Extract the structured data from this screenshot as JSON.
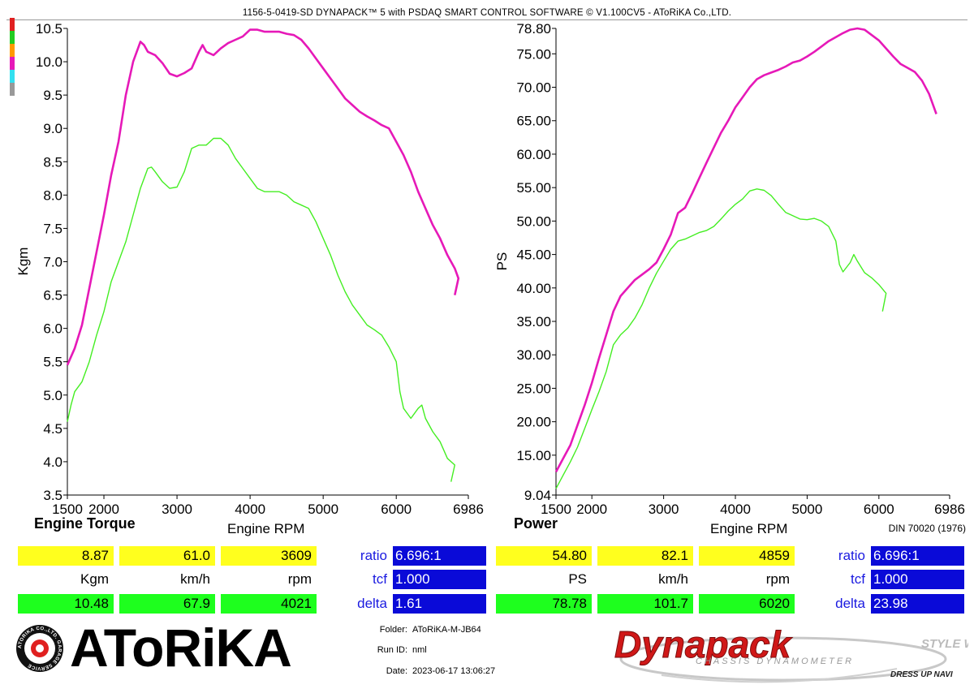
{
  "header": {
    "title": "1156-5-0419-SD DYNAPACK™ 5 with PSDAQ SMART CONTROL SOFTWARE © V1.100CV5 - AToRiKA Co.,LTD."
  },
  "colors": {
    "series_max": "#e619b8",
    "series_min": "#44ee22",
    "yellow": "#ffff1e",
    "green": "#1eff1e",
    "blue": "#0a0ad8"
  },
  "legend_swatch_colors": [
    "#e02020",
    "#22cc22",
    "#ff9900",
    "#e619b8",
    "#33e0f0",
    "#999999"
  ],
  "chart_data": [
    {
      "type": "line",
      "title": "Engine Torque",
      "xlabel": "Engine RPM",
      "ylabel": "Kgm",
      "xlim": [
        1500,
        6986
      ],
      "ylim": [
        3.5,
        10.5
      ],
      "x_ticks": [
        "1500",
        "2000",
        "3000",
        "4000",
        "5000",
        "6000",
        "6986"
      ],
      "y_ticks": [
        "10.5",
        "10.0",
        "9.5",
        "9.0",
        "8.5",
        "8.0",
        "7.5",
        "7.0",
        "6.5",
        "6.0",
        "5.5",
        "5.0",
        "4.5",
        "4.0",
        "3.5"
      ],
      "grid": false,
      "series": [
        {
          "color": "#e619b8",
          "points": [
            [
              1500,
              5.45
            ],
            [
              1600,
              5.7
            ],
            [
              1700,
              6.05
            ],
            [
              1800,
              6.6
            ],
            [
              1900,
              7.15
            ],
            [
              2000,
              7.7
            ],
            [
              2100,
              8.3
            ],
            [
              2200,
              8.8
            ],
            [
              2300,
              9.5
            ],
            [
              2400,
              10.0
            ],
            [
              2500,
              10.3
            ],
            [
              2550,
              10.25
            ],
            [
              2600,
              10.15
            ],
            [
              2700,
              10.1
            ],
            [
              2800,
              9.98
            ],
            [
              2900,
              9.82
            ],
            [
              3000,
              9.78
            ],
            [
              3100,
              9.83
            ],
            [
              3200,
              9.9
            ],
            [
              3300,
              10.15
            ],
            [
              3350,
              10.25
            ],
            [
              3400,
              10.15
            ],
            [
              3500,
              10.1
            ],
            [
              3600,
              10.2
            ],
            [
              3700,
              10.28
            ],
            [
              3800,
              10.33
            ],
            [
              3900,
              10.38
            ],
            [
              4000,
              10.48
            ],
            [
              4100,
              10.48
            ],
            [
              4200,
              10.45
            ],
            [
              4300,
              10.45
            ],
            [
              4400,
              10.45
            ],
            [
              4500,
              10.42
            ],
            [
              4600,
              10.4
            ],
            [
              4700,
              10.33
            ],
            [
              4800,
              10.2
            ],
            [
              4900,
              10.05
            ],
            [
              5000,
              9.9
            ],
            [
              5100,
              9.75
            ],
            [
              5200,
              9.6
            ],
            [
              5300,
              9.45
            ],
            [
              5400,
              9.35
            ],
            [
              5500,
              9.25
            ],
            [
              5600,
              9.18
            ],
            [
              5700,
              9.12
            ],
            [
              5800,
              9.05
            ],
            [
              5900,
              9.0
            ],
            [
              6000,
              8.8
            ],
            [
              6100,
              8.6
            ],
            [
              6200,
              8.35
            ],
            [
              6300,
              8.05
            ],
            [
              6400,
              7.8
            ],
            [
              6500,
              7.55
            ],
            [
              6600,
              7.35
            ],
            [
              6700,
              7.1
            ],
            [
              6800,
              6.9
            ],
            [
              6850,
              6.75
            ],
            [
              6800,
              6.5
            ]
          ]
        },
        {
          "color": "#44ee22",
          "points": [
            [
              1500,
              4.6
            ],
            [
              1550,
              4.85
            ],
            [
              1600,
              5.05
            ],
            [
              1700,
              5.2
            ],
            [
              1800,
              5.5
            ],
            [
              1900,
              5.9
            ],
            [
              2000,
              6.25
            ],
            [
              2100,
              6.7
            ],
            [
              2200,
              7.0
            ],
            [
              2300,
              7.3
            ],
            [
              2400,
              7.7
            ],
            [
              2500,
              8.1
            ],
            [
              2600,
              8.4
            ],
            [
              2650,
              8.42
            ],
            [
              2700,
              8.35
            ],
            [
              2800,
              8.2
            ],
            [
              2900,
              8.1
            ],
            [
              3000,
              8.12
            ],
            [
              3100,
              8.35
            ],
            [
              3200,
              8.7
            ],
            [
              3300,
              8.75
            ],
            [
              3400,
              8.75
            ],
            [
              3500,
              8.85
            ],
            [
              3600,
              8.85
            ],
            [
              3700,
              8.75
            ],
            [
              3800,
              8.55
            ],
            [
              3900,
              8.4
            ],
            [
              4000,
              8.25
            ],
            [
              4100,
              8.1
            ],
            [
              4200,
              8.05
            ],
            [
              4300,
              8.05
            ],
            [
              4400,
              8.05
            ],
            [
              4500,
              8.0
            ],
            [
              4600,
              7.9
            ],
            [
              4700,
              7.85
            ],
            [
              4800,
              7.8
            ],
            [
              4900,
              7.6
            ],
            [
              5000,
              7.35
            ],
            [
              5100,
              7.1
            ],
            [
              5200,
              6.8
            ],
            [
              5300,
              6.55
            ],
            [
              5400,
              6.35
            ],
            [
              5500,
              6.2
            ],
            [
              5600,
              6.05
            ],
            [
              5700,
              5.98
            ],
            [
              5800,
              5.9
            ],
            [
              5900,
              5.72
            ],
            [
              6000,
              5.5
            ],
            [
              6050,
              5.05
            ],
            [
              6100,
              4.8
            ],
            [
              6200,
              4.65
            ],
            [
              6300,
              4.8
            ],
            [
              6350,
              4.85
            ],
            [
              6400,
              4.65
            ],
            [
              6500,
              4.45
            ],
            [
              6600,
              4.3
            ],
            [
              6700,
              4.05
            ],
            [
              6800,
              3.95
            ],
            [
              6750,
              3.7
            ]
          ]
        }
      ]
    },
    {
      "type": "line",
      "title": "Power",
      "xlabel": "Engine RPM",
      "ylabel": "PS",
      "subtitle": "DIN 70020 (1976)",
      "xlim": [
        1500,
        6986
      ],
      "ylim": [
        9.04,
        78.8
      ],
      "x_ticks": [
        "1500",
        "2000",
        "3000",
        "4000",
        "5000",
        "6000",
        "6986"
      ],
      "y_ticks": [
        "78.80",
        "75.00",
        "70.00",
        "65.00",
        "60.00",
        "55.00",
        "50.00",
        "45.00",
        "40.00",
        "35.00",
        "30.00",
        "25.00",
        "20.00",
        "15.00",
        "9.04"
      ],
      "grid": false,
      "series": [
        {
          "color": "#e619b8",
          "points": [
            [
              1500,
              12.5
            ],
            [
              1600,
              14.5
            ],
            [
              1700,
              16.5
            ],
            [
              1800,
              19.5
            ],
            [
              1900,
              22.5
            ],
            [
              2000,
              25.8
            ],
            [
              2100,
              29.5
            ],
            [
              2200,
              33.0
            ],
            [
              2300,
              36.5
            ],
            [
              2400,
              38.8
            ],
            [
              2500,
              40.0
            ],
            [
              2600,
              41.2
            ],
            [
              2700,
              42.0
            ],
            [
              2800,
              42.8
            ],
            [
              2900,
              43.8
            ],
            [
              3000,
              45.8
            ],
            [
              3100,
              48.0
            ],
            [
              3200,
              51.2
            ],
            [
              3300,
              52.0
            ],
            [
              3400,
              54.2
            ],
            [
              3500,
              56.5
            ],
            [
              3600,
              58.8
            ],
            [
              3700,
              61.0
            ],
            [
              3800,
              63.2
            ],
            [
              3900,
              65.0
            ],
            [
              4000,
              67.0
            ],
            [
              4100,
              68.5
            ],
            [
              4200,
              70.0
            ],
            [
              4300,
              71.2
            ],
            [
              4400,
              71.8
            ],
            [
              4500,
              72.2
            ],
            [
              4600,
              72.6
            ],
            [
              4700,
              73.1
            ],
            [
              4800,
              73.7
            ],
            [
              4900,
              74.0
            ],
            [
              5000,
              74.6
            ],
            [
              5100,
              75.3
            ],
            [
              5200,
              76.1
            ],
            [
              5300,
              76.9
            ],
            [
              5400,
              77.5
            ],
            [
              5500,
              78.1
            ],
            [
              5600,
              78.6
            ],
            [
              5700,
              78.8
            ],
            [
              5800,
              78.6
            ],
            [
              5900,
              77.8
            ],
            [
              6000,
              77.0
            ],
            [
              6100,
              75.8
            ],
            [
              6200,
              74.6
            ],
            [
              6300,
              73.5
            ],
            [
              6400,
              72.9
            ],
            [
              6500,
              72.3
            ],
            [
              6600,
              71.0
            ],
            [
              6700,
              69.0
            ],
            [
              6800,
              66.0
            ]
          ]
        },
        {
          "color": "#44ee22",
          "points": [
            [
              1500,
              10.0
            ],
            [
              1600,
              12.0
            ],
            [
              1700,
              14.0
            ],
            [
              1800,
              16.2
            ],
            [
              1900,
              19.0
            ],
            [
              2000,
              21.8
            ],
            [
              2100,
              24.5
            ],
            [
              2200,
              27.5
            ],
            [
              2300,
              31.5
            ],
            [
              2400,
              33.0
            ],
            [
              2500,
              34.0
            ],
            [
              2600,
              35.5
            ],
            [
              2700,
              37.5
            ],
            [
              2800,
              40.0
            ],
            [
              2900,
              42.2
            ],
            [
              3000,
              44.0
            ],
            [
              3100,
              45.8
            ],
            [
              3200,
              47.0
            ],
            [
              3300,
              47.3
            ],
            [
              3400,
              47.8
            ],
            [
              3500,
              48.3
            ],
            [
              3600,
              48.6
            ],
            [
              3700,
              49.2
            ],
            [
              3800,
              50.3
            ],
            [
              3900,
              51.5
            ],
            [
              4000,
              52.5
            ],
            [
              4100,
              53.3
            ],
            [
              4200,
              54.5
            ],
            [
              4300,
              54.8
            ],
            [
              4400,
              54.6
            ],
            [
              4500,
              53.8
            ],
            [
              4600,
              52.5
            ],
            [
              4700,
              51.3
            ],
            [
              4800,
              50.8
            ],
            [
              4900,
              50.3
            ],
            [
              5000,
              50.2
            ],
            [
              5100,
              50.4
            ],
            [
              5200,
              50.0
            ],
            [
              5300,
              49.2
            ],
            [
              5400,
              47.0
            ],
            [
              5450,
              43.5
            ],
            [
              5500,
              42.4
            ],
            [
              5600,
              43.8
            ],
            [
              5650,
              45.0
            ],
            [
              5700,
              44.0
            ],
            [
              5800,
              42.3
            ],
            [
              5900,
              41.5
            ],
            [
              6000,
              40.5
            ],
            [
              6100,
              39.2
            ],
            [
              6050,
              36.5
            ]
          ]
        }
      ]
    }
  ],
  "left_chart": {
    "title": "Engine Torque",
    "xlabel": "Engine RPM",
    "ylabel": "Kgm"
  },
  "right_chart": {
    "title": "Power",
    "xlabel": "Engine RPM",
    "ylabel": "PS",
    "standard": "DIN 70020 (1976)"
  },
  "left_table": {
    "current": [
      "8.87",
      "61.0",
      "3609"
    ],
    "units": [
      "Kgm",
      "km/h",
      "rpm"
    ],
    "max": [
      "10.48",
      "67.9",
      "4021"
    ],
    "labels": [
      "ratio",
      "tcf",
      "delta"
    ],
    "values": [
      "6.696:1",
      "1.000",
      "1.61"
    ]
  },
  "right_table": {
    "current": [
      "54.80",
      "82.1",
      "4859"
    ],
    "units": [
      "PS",
      "km/h",
      "rpm"
    ],
    "max": [
      "78.78",
      "101.7",
      "6020"
    ],
    "labels": [
      "ratio",
      "tcf",
      "delta"
    ],
    "values": [
      "6.696:1",
      "1.000",
      "23.98"
    ]
  },
  "footer": {
    "brand": "AToRiKA",
    "seal_text": "ATORIKA CO.,LTD. GARAGE SERVICE",
    "folder_label": "Folder:",
    "folder": "AToRiKA-M-JB64",
    "run_label": "Run ID:",
    "run_id": "nml",
    "date_label": "Date:",
    "date": "2023-06-17 13:06:27",
    "dynapack_logo": "Dynapack",
    "dynapack_sub": "CHASSIS DYNAMOMETER",
    "watermark_1": "STYLE WAGON",
    "watermark_2": "DRESS UP NAVI"
  }
}
